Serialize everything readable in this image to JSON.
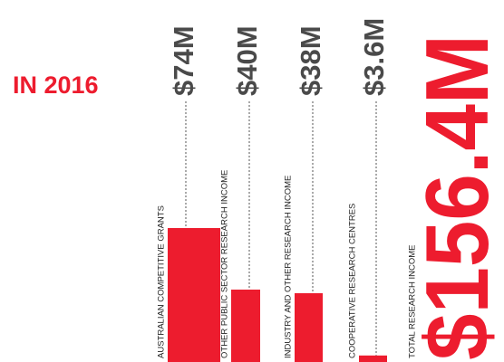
{
  "chart_data": {
    "type": "bar",
    "title": "IN 2016",
    "categories": [
      "AUSTRALIAN COMPETITIVE GRANTS",
      "OTHER PUBLIC SECTOR RESEARCH INCOME",
      "INDUSTRY AND OTHER RESEARCH INCOME",
      "COOPERATIVE RESEARCH CENTRES"
    ],
    "values": [
      74,
      40,
      38,
      3.6
    ],
    "value_labels": [
      "$74M",
      "$40M",
      "$38M",
      "$3.6M"
    ],
    "color": "#ed1c2e",
    "total_label": "TOTAL RESEARCH INCOME",
    "total": 156.4,
    "total_value_label": "$156.4M"
  }
}
